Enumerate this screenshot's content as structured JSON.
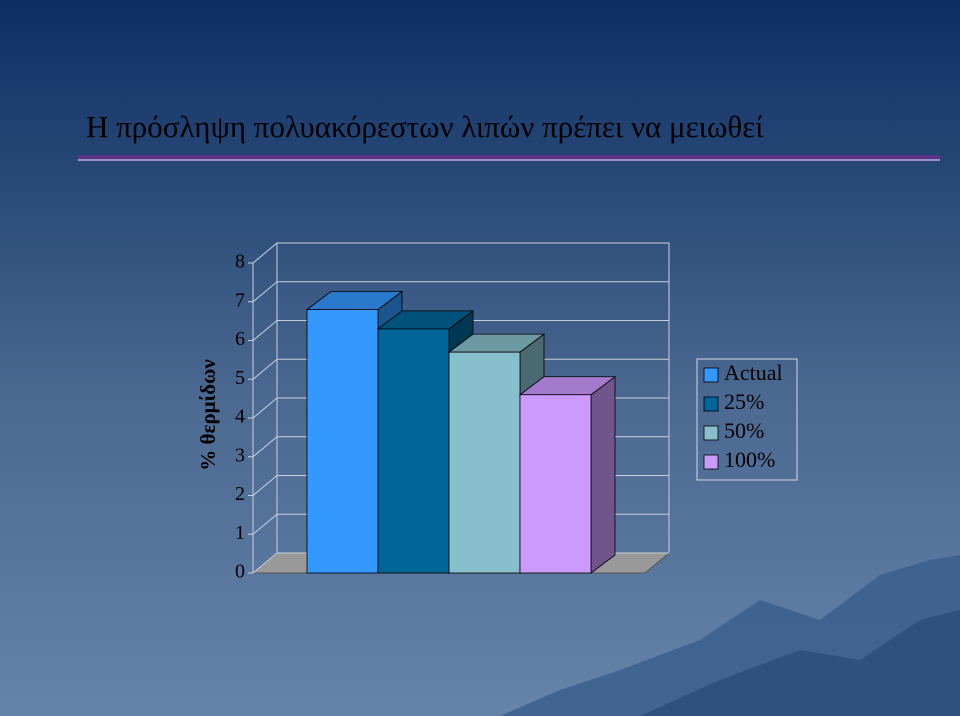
{
  "chart_data": {
    "type": "bar3d",
    "title": "Η πρόσληψη πολυακόρεστων λιπών πρέπει να μειωθεί",
    "y_label": "% θερμίδων",
    "categories": [
      null
    ],
    "series": [
      {
        "name": "Actual",
        "color": "#3399ff",
        "values": [
          6.8
        ]
      },
      {
        "name": "25%",
        "color": "#006699",
        "values": [
          6.3
        ]
      },
      {
        "name": "50%",
        "color": "#88bfcc",
        "values": [
          5.7
        ]
      },
      {
        "name": "100%",
        "color": "#cc99ff",
        "values": [
          4.6
        ]
      }
    ],
    "ylim": [
      0,
      8
    ],
    "yticks": [
      0,
      1,
      2,
      3,
      4,
      5,
      6,
      7,
      8
    ],
    "grid": true,
    "legend": "right"
  }
}
